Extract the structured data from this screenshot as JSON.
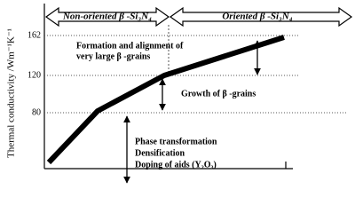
{
  "header": {
    "left_region": "Non-oriented β -Si₃N₄",
    "right_region": "Oriented β -Si₃N₄"
  },
  "y_axis": {
    "label": "Thermal conductivity /Wm⁻¹K⁻¹",
    "ticks": [
      "162",
      "120",
      "80"
    ]
  },
  "annotations": {
    "stage3": [
      "Formation and alignment of",
      "very large β -grains"
    ],
    "stage2": [
      "Growth of β -grains"
    ],
    "stage1": [
      "Phase transformation",
      "Densification",
      "Doping of aids (Y₂O₃)"
    ]
  }
}
